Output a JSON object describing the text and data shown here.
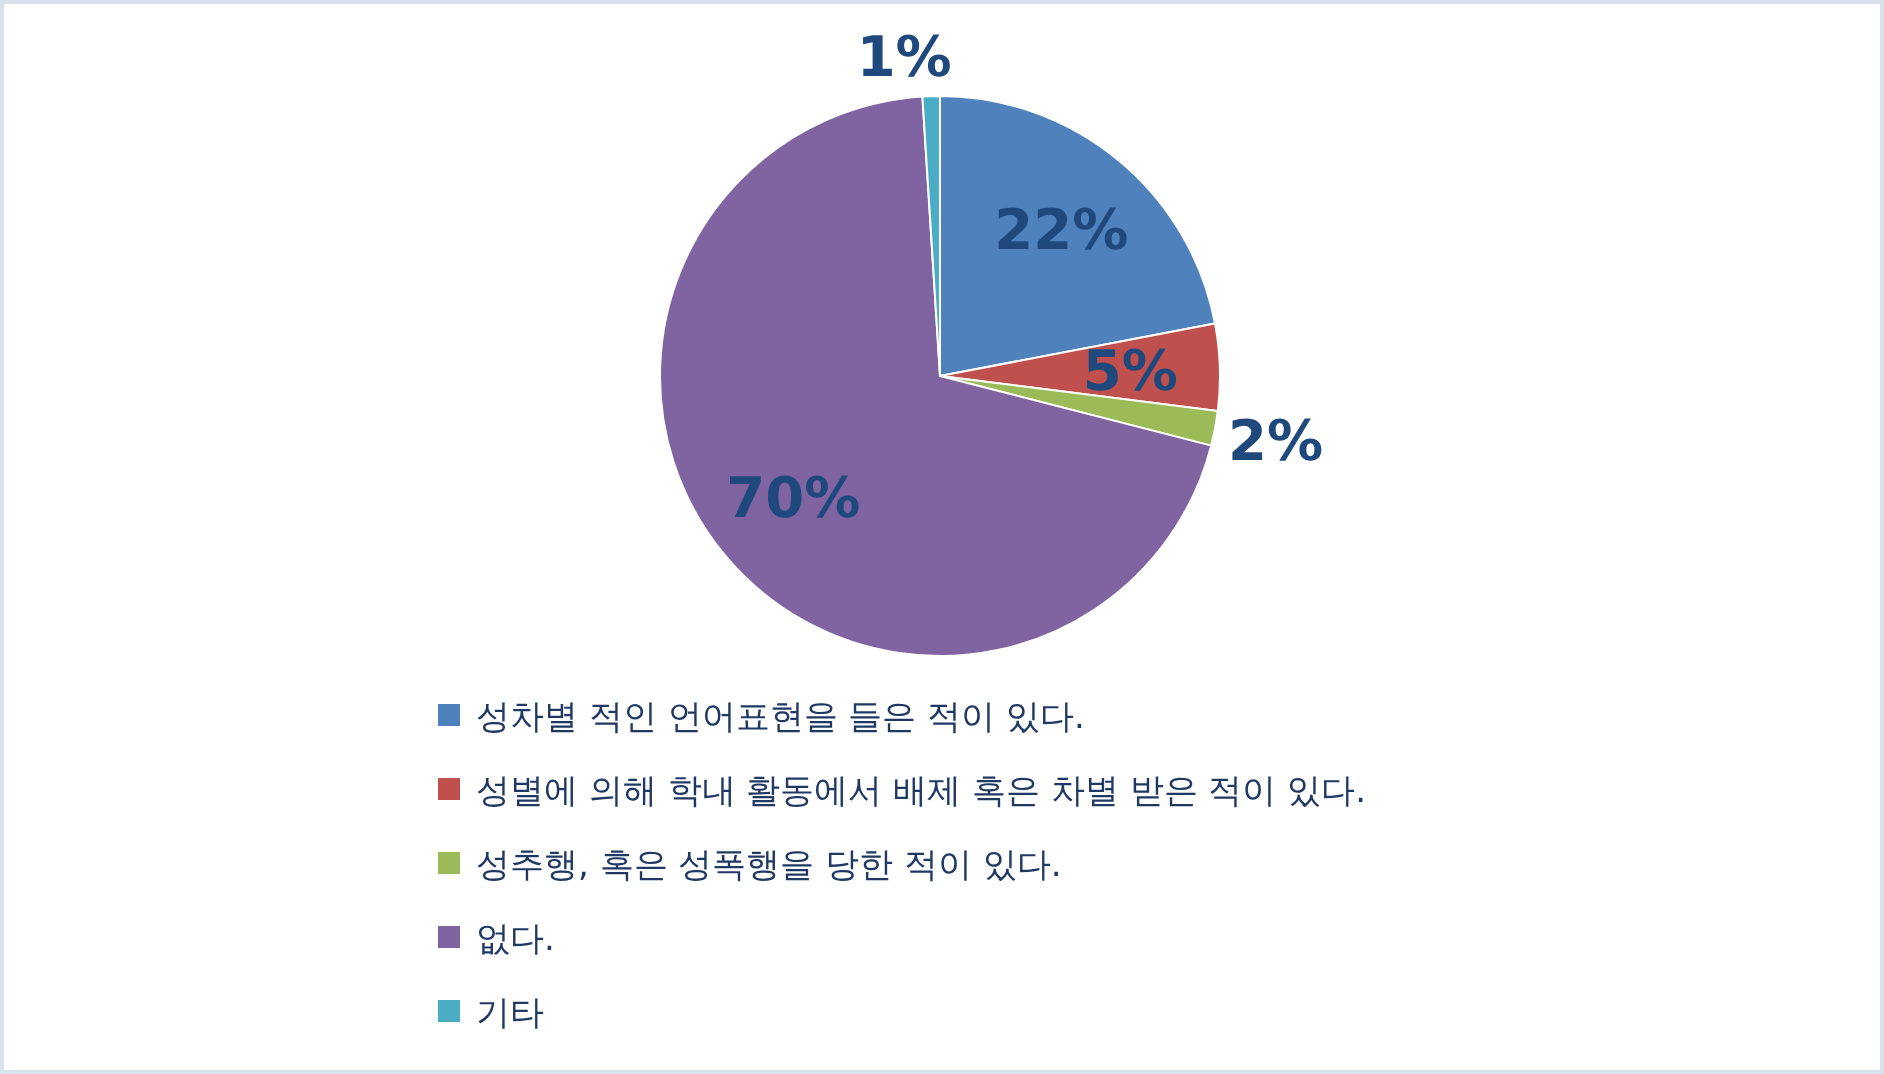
{
  "chart_data": {
    "type": "pie",
    "categories": [
      "성차별 적인 언어표현을 들은 적이 있다.",
      "성별에 의해 학내 활동에서 배제 혹은 차별 받은 적이 있다.",
      "성추행, 혹은 성폭행을 당한 적이 있다.",
      "없다.",
      "기타"
    ],
    "values": [
      22,
      5,
      2,
      70,
      1
    ],
    "colors": [
      "#4f81bd",
      "#c0504d",
      "#9bbb59",
      "#8064a2",
      "#4bacc6"
    ],
    "value_labels": [
      "22%",
      "5%",
      "2%",
      "70%",
      "1%"
    ],
    "legend": "bottom"
  }
}
